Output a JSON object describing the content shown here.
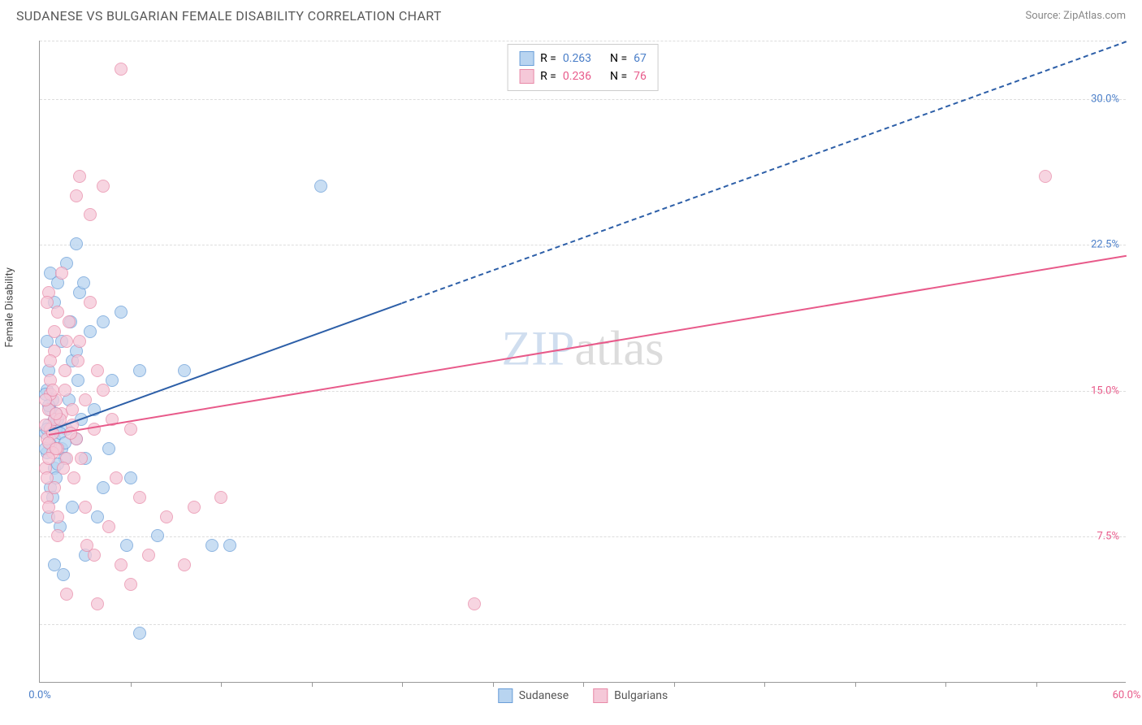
{
  "header": {
    "title": "SUDANESE VS BULGARIAN FEMALE DISABILITY CORRELATION CHART",
    "source": "Source: ZipAtlas.com"
  },
  "chart": {
    "type": "scatter",
    "ylabel": "Female Disability",
    "watermark_zip": "ZIP",
    "watermark_atlas": "atlas",
    "xlim": [
      0,
      60
    ],
    "ylim": [
      0,
      33
    ],
    "yticks": [
      {
        "value": 7.5,
        "label": "7.5%",
        "color": "#e85a8a"
      },
      {
        "value": 15.0,
        "label": "15.0%",
        "color": "#e85a8a"
      },
      {
        "value": 22.5,
        "label": "22.5%",
        "color": "#4a7ec8"
      },
      {
        "value": 30.0,
        "label": "30.0%",
        "color": "#4a7ec8"
      }
    ],
    "gridlines_y": [
      3,
      7.5,
      15,
      22.5,
      30,
      33
    ],
    "xticks_minor": [
      5,
      10,
      15,
      20,
      25,
      30,
      35,
      40,
      45,
      50,
      55
    ],
    "xticks_labeled": [
      {
        "value": 0,
        "label": "0.0%",
        "color": "#4a7ec8"
      },
      {
        "value": 60,
        "label": "60.0%",
        "color": "#e85a8a"
      }
    ],
    "series": [
      {
        "name": "Sudanese",
        "fill": "#b8d4f0",
        "stroke": "#6a9ed8",
        "line_color": "#2d5fa8",
        "r_label": "R = ",
        "r_value": "0.263",
        "n_label": "N = ",
        "n_value": "67",
        "trend": {
          "x1": 0.5,
          "y1": 13.0,
          "x2": 60,
          "y2": 33.0,
          "solid_until_x": 20
        },
        "points": [
          [
            0.3,
            12.8
          ],
          [
            0.5,
            13.2
          ],
          [
            0.8,
            12.5
          ],
          [
            1.0,
            13.5
          ],
          [
            0.4,
            11.8
          ],
          [
            0.6,
            14.0
          ],
          [
            1.2,
            12.0
          ],
          [
            0.9,
            13.8
          ],
          [
            0.7,
            14.5
          ],
          [
            1.5,
            13.0
          ],
          [
            0.4,
            15.0
          ],
          [
            2.0,
            12.5
          ],
          [
            0.8,
            11.0
          ],
          [
            1.8,
            16.5
          ],
          [
            2.5,
            11.5
          ],
          [
            3.0,
            14.0
          ],
          [
            2.2,
            20.0
          ],
          [
            3.5,
            18.5
          ],
          [
            4.0,
            15.5
          ],
          [
            1.5,
            21.5
          ],
          [
            2.8,
            18.0
          ],
          [
            5.5,
            16.0
          ],
          [
            1.0,
            20.5
          ],
          [
            4.5,
            19.0
          ],
          [
            0.6,
            10.0
          ],
          [
            1.8,
            9.0
          ],
          [
            3.2,
            8.5
          ],
          [
            4.8,
            7.0
          ],
          [
            2.5,
            6.5
          ],
          [
            5.0,
            10.5
          ],
          [
            6.5,
            7.5
          ],
          [
            8.0,
            16.0
          ],
          [
            9.5,
            7.0
          ],
          [
            10.5,
            7.0
          ],
          [
            15.5,
            25.5
          ],
          [
            2.0,
            22.5
          ],
          [
            0.8,
            19.5
          ],
          [
            1.2,
            17.5
          ],
          [
            0.5,
            16.0
          ],
          [
            0.3,
            14.8
          ],
          [
            0.9,
            10.5
          ],
          [
            1.4,
            11.5
          ],
          [
            2.3,
            13.5
          ],
          [
            0.6,
            12.2
          ],
          [
            1.0,
            11.2
          ],
          [
            3.8,
            12.0
          ],
          [
            0.4,
            13.0
          ],
          [
            1.6,
            14.5
          ],
          [
            2.1,
            15.5
          ],
          [
            0.7,
            9.5
          ],
          [
            1.1,
            8.0
          ],
          [
            0.5,
            8.5
          ],
          [
            3.5,
            10.0
          ],
          [
            5.5,
            2.5
          ],
          [
            0.8,
            6.0
          ],
          [
            1.3,
            5.5
          ],
          [
            2.0,
            17.0
          ],
          [
            0.4,
            17.5
          ],
          [
            1.7,
            18.5
          ],
          [
            0.6,
            21.0
          ],
          [
            2.4,
            20.5
          ],
          [
            0.3,
            12.0
          ],
          [
            0.9,
            13.0
          ],
          [
            1.1,
            12.8
          ],
          [
            0.5,
            14.2
          ],
          [
            0.8,
            13.5
          ],
          [
            1.4,
            12.3
          ]
        ]
      },
      {
        "name": "Bulgarians",
        "fill": "#f5c8d8",
        "stroke": "#e88aa8",
        "line_color": "#e85a8a",
        "r_label": "R = ",
        "r_value": "0.236",
        "n_label": "N = ",
        "n_value": "76",
        "trend": {
          "x1": 0.5,
          "y1": 12.8,
          "x2": 60,
          "y2": 22.0,
          "solid_until_x": 60
        },
        "points": [
          [
            0.4,
            12.5
          ],
          [
            0.6,
            13.0
          ],
          [
            0.8,
            13.5
          ],
          [
            1.0,
            12.0
          ],
          [
            0.5,
            14.0
          ],
          [
            1.2,
            13.8
          ],
          [
            0.7,
            12.8
          ],
          [
            1.5,
            11.5
          ],
          [
            0.3,
            11.0
          ],
          [
            0.9,
            14.5
          ],
          [
            1.8,
            13.2
          ],
          [
            2.0,
            12.5
          ],
          [
            0.6,
            15.5
          ],
          [
            1.4,
            16.0
          ],
          [
            2.5,
            14.5
          ],
          [
            3.0,
            13.0
          ],
          [
            0.8,
            17.0
          ],
          [
            1.6,
            18.5
          ],
          [
            2.2,
            17.5
          ],
          [
            3.5,
            15.0
          ],
          [
            4.0,
            13.5
          ],
          [
            5.0,
            13.0
          ],
          [
            1.0,
            19.0
          ],
          [
            2.8,
            19.5
          ],
          [
            0.5,
            20.0
          ],
          [
            1.2,
            21.0
          ],
          [
            0.4,
            9.5
          ],
          [
            1.0,
            8.5
          ],
          [
            2.5,
            9.0
          ],
          [
            3.8,
            8.0
          ],
          [
            5.5,
            9.5
          ],
          [
            7.0,
            8.5
          ],
          [
            8.5,
            9.0
          ],
          [
            10.0,
            9.5
          ],
          [
            2.0,
            25.0
          ],
          [
            3.0,
            6.5
          ],
          [
            4.5,
            6.0
          ],
          [
            6.0,
            6.5
          ],
          [
            8.0,
            6.0
          ],
          [
            1.5,
            4.5
          ],
          [
            3.2,
            4.0
          ],
          [
            5.0,
            5.0
          ],
          [
            2.8,
            24.0
          ],
          [
            3.5,
            25.5
          ],
          [
            4.5,
            31.5
          ],
          [
            2.2,
            26.0
          ],
          [
            55.5,
            26.0
          ],
          [
            24.0,
            4.0
          ],
          [
            0.3,
            13.2
          ],
          [
            0.5,
            12.3
          ],
          [
            0.7,
            11.8
          ],
          [
            1.1,
            13.5
          ],
          [
            0.6,
            14.8
          ],
          [
            0.9,
            12.0
          ],
          [
            1.3,
            11.0
          ],
          [
            0.4,
            10.5
          ],
          [
            1.7,
            12.8
          ],
          [
            2.3,
            11.5
          ],
          [
            0.8,
            10.0
          ],
          [
            1.9,
            10.5
          ],
          [
            0.5,
            9.0
          ],
          [
            1.0,
            7.5
          ],
          [
            2.6,
            7.0
          ],
          [
            4.2,
            10.5
          ],
          [
            0.3,
            14.5
          ],
          [
            0.6,
            16.5
          ],
          [
            1.4,
            15.0
          ],
          [
            0.8,
            18.0
          ],
          [
            2.1,
            16.5
          ],
          [
            0.4,
            19.5
          ],
          [
            1.5,
            17.5
          ],
          [
            3.2,
            16.0
          ],
          [
            0.7,
            15.0
          ],
          [
            1.8,
            14.0
          ],
          [
            0.5,
            11.5
          ],
          [
            0.9,
            13.8
          ]
        ]
      }
    ]
  }
}
